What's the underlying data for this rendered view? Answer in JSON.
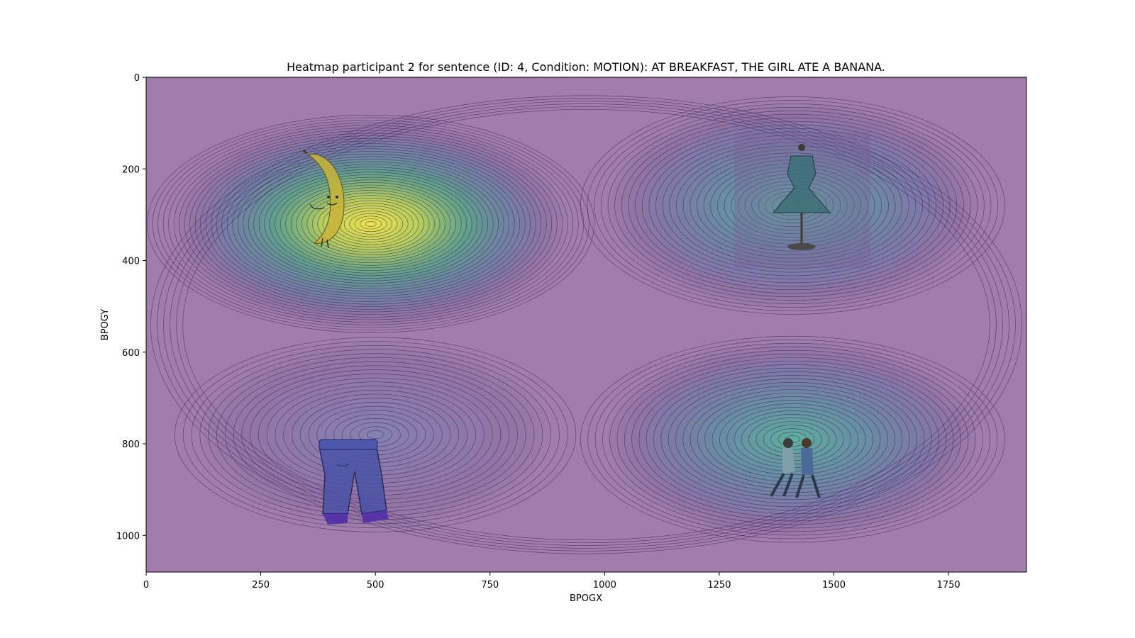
{
  "chart_data": {
    "type": "heatmap",
    "title": "Heatmap participant 2 for sentence (ID: 4, Condition: MOTION):  AT BREAKFAST, THE GIRL ATE A BANANA.",
    "xlabel": "BPOGX",
    "ylabel": "BPOGY",
    "xlim": [
      0,
      1920
    ],
    "ylim": [
      1080,
      0
    ],
    "y_inverted": true,
    "x_ticks": [
      0,
      250,
      500,
      750,
      1000,
      1250,
      1500,
      1750
    ],
    "y_ticks": [
      0,
      200,
      400,
      600,
      800,
      1000
    ],
    "grid": false,
    "legend": "none",
    "colormap": "viridis",
    "contour_color": "#3d1f5e",
    "background_color": "#a07daa",
    "density_peaks": [
      {
        "x": 490,
        "y": 320,
        "sx": 195,
        "sy": 95,
        "weight": 1.0
      },
      {
        "x": 1410,
        "y": 280,
        "sx": 185,
        "sy": 95,
        "weight": 0.58
      },
      {
        "x": 1410,
        "y": 790,
        "sx": 185,
        "sy": 90,
        "weight": 0.5
      },
      {
        "x": 500,
        "y": 780,
        "sx": 175,
        "sy": 85,
        "weight": 0.3
      }
    ],
    "stimulus_images": [
      {
        "name": "banana",
        "icon": "dancing-banana-icon",
        "x_range": [
          340,
          460
        ],
        "y_range": [
          170,
          380
        ]
      },
      {
        "name": "dress",
        "icon": "dress-on-mannequin-icon",
        "x_range": [
          1290,
          1590
        ],
        "y_range": [
          120,
          420
        ]
      },
      {
        "name": "jeans",
        "icon": "walking-jeans-icon",
        "x_range": [
          380,
          560
        ],
        "y_range": [
          700,
          960
        ]
      },
      {
        "name": "dancers",
        "icon": "dancing-couple-icon",
        "x_range": [
          1330,
          1460
        ],
        "y_range": [
          780,
          940
        ]
      }
    ]
  }
}
